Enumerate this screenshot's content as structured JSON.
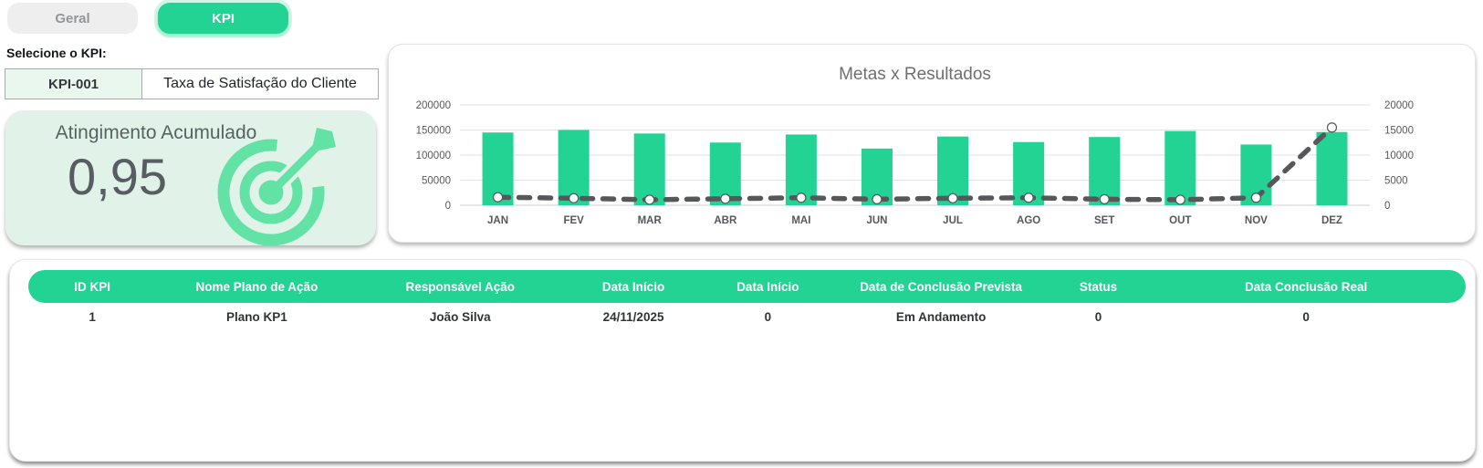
{
  "tabs": {
    "geral": "Geral",
    "kpi": "KPI"
  },
  "kpi_selector": {
    "label": "Selecione o KPI:",
    "id": "KPI-001",
    "name": "Taxa de Satisfação do Cliente"
  },
  "summary_card": {
    "title": "Atingimento Acumulado",
    "value": "0,95"
  },
  "icons": {
    "summary_icon": "target-dart-icon"
  },
  "colors": {
    "accent_green": "#22d394",
    "icon_green": "#63e2a6",
    "summary_card_bg": "#e1f3e8",
    "selected_cell_bg": "#e9f7ee",
    "line_gray": "#55575a",
    "title_gray": "#6f6f6f"
  },
  "chart_data": {
    "type": "bar",
    "title": "Metas x Resultados",
    "categories": [
      "JAN",
      "FEV",
      "MAR",
      "ABR",
      "MAI",
      "JUN",
      "JUL",
      "AGO",
      "SET",
      "OUT",
      "NOV",
      "DEZ"
    ],
    "series": [
      {
        "name": "Metas",
        "type": "bar",
        "axis": "left",
        "values": [
          145000,
          150000,
          143000,
          125000,
          141000,
          113000,
          137000,
          126000,
          136000,
          148000,
          121000,
          146000
        ]
      },
      {
        "name": "Resultados",
        "type": "line",
        "axis": "right",
        "values": [
          1600,
          1400,
          1100,
          1300,
          1500,
          1200,
          1400,
          1500,
          1200,
          1100,
          1500,
          15500
        ]
      }
    ],
    "left_axis": {
      "min": 0,
      "max": 200000,
      "ticks": [
        0,
        50000,
        100000,
        150000,
        200000
      ]
    },
    "right_axis": {
      "min": 0,
      "max": 20000,
      "ticks": [
        0,
        5000,
        10000,
        15000,
        20000
      ]
    },
    "grid": true,
    "legend": false
  },
  "table": {
    "headers": [
      "ID KPI",
      "Nome Plano de Ação",
      "Responsável Ação",
      "Data Início",
      "Data Início",
      "Data de Conclusão Prevista",
      "Status",
      "Data Conclusão Real"
    ],
    "rows": [
      [
        "1",
        "Plano KP1",
        "João Silva",
        "24/11/2025",
        "0",
        "Em Andamento",
        "0",
        "0"
      ]
    ]
  }
}
